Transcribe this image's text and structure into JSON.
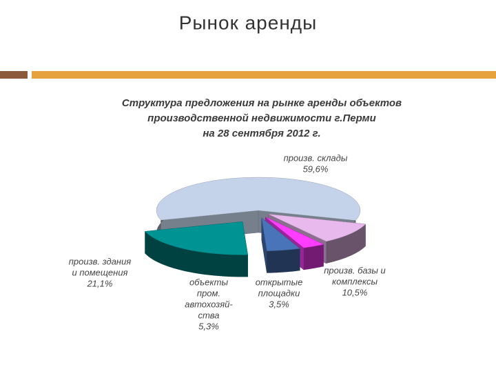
{
  "slide_title": "Рынок аренды",
  "chart_data": {
    "type": "pie3d",
    "title": [
      "Структура предложения на рынке аренды объектов",
      "производственной недвижимости г.Перми",
      "на 28 сентября 2012 г."
    ],
    "categories": [
      [
        "произв. склады"
      ],
      [
        "произв. базы и",
        "комплексы"
      ],
      [
        "открытые",
        "площадки"
      ],
      [
        "объекты",
        "пром.",
        "автохозяй-",
        "ства"
      ],
      [
        "произв. здания",
        "и помещения"
      ]
    ],
    "values": [
      59.6,
      10.5,
      3.5,
      5.3,
      21.1
    ],
    "value_labels": [
      "59,6%",
      "10,5%",
      "3,5%",
      "5,3%",
      "21,1%"
    ],
    "colors": [
      "#c5d3ea",
      "#e8b9ec",
      "#ff3dff",
      "#4a74b9",
      "#009393"
    ]
  }
}
